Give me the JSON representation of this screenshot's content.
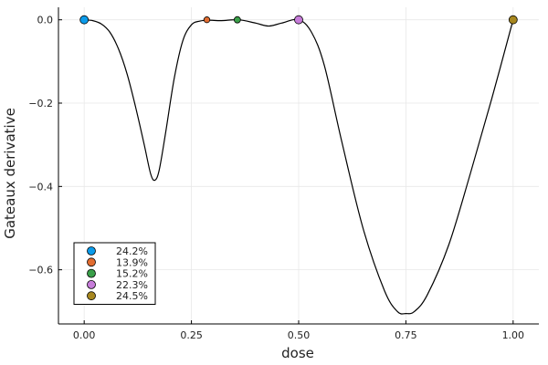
{
  "chart_data": {
    "type": "line",
    "xlabel": "dose",
    "ylabel": "Gateaux derivative",
    "xlim": [
      -0.06,
      1.06
    ],
    "ylim": [
      -0.73,
      0.03
    ],
    "xticks": [
      0.0,
      0.25,
      0.5,
      0.75,
      1.0
    ],
    "xtick_labels": [
      "0.00",
      "0.25",
      "0.50",
      "0.75",
      "1.00"
    ],
    "yticks": [
      0.0,
      -0.2,
      -0.4,
      -0.6
    ],
    "ytick_labels": [
      "0.0",
      "−0.2",
      "−0.4",
      "−0.6"
    ],
    "grid": true,
    "legend_position": "bottom-left",
    "curve": {
      "color": "#000000",
      "x": [
        0.0,
        0.02,
        0.04,
        0.06,
        0.08,
        0.1,
        0.12,
        0.14,
        0.155,
        0.165,
        0.175,
        0.19,
        0.21,
        0.23,
        0.25,
        0.27,
        0.29,
        0.32,
        0.36,
        0.4,
        0.43,
        0.46,
        0.5,
        0.53,
        0.56,
        0.6,
        0.65,
        0.7,
        0.73,
        0.75,
        0.77,
        0.8,
        0.85,
        0.9,
        0.95,
        1.0
      ],
      "y": [
        0.0,
        -0.002,
        -0.01,
        -0.03,
        -0.07,
        -0.13,
        -0.21,
        -0.3,
        -0.37,
        -0.385,
        -0.36,
        -0.27,
        -0.14,
        -0.05,
        -0.012,
        -0.003,
        -0.001,
        -0.002,
        0.0,
        -0.008,
        -0.015,
        -0.008,
        0.0,
        -0.03,
        -0.11,
        -0.29,
        -0.5,
        -0.65,
        -0.7,
        -0.705,
        -0.7,
        -0.66,
        -0.54,
        -0.37,
        -0.19,
        0.0
      ]
    },
    "points": [
      {
        "x": 0.0,
        "y": 0.0,
        "label": "24.2%",
        "color": "#0b9bea",
        "size": 9
      },
      {
        "x": 0.286,
        "y": 0.0,
        "label": "13.9%",
        "color": "#e26d31",
        "size": 6.5
      },
      {
        "x": 0.357,
        "y": 0.0,
        "label": "15.2%",
        "color": "#3a9f49",
        "size": 7
      },
      {
        "x": 0.5,
        "y": 0.0,
        "label": "22.3%",
        "color": "#c67cd9",
        "size": 9
      },
      {
        "x": 1.0,
        "y": 0.0,
        "label": "24.5%",
        "color": "#a7871f",
        "size": 9
      }
    ]
  }
}
